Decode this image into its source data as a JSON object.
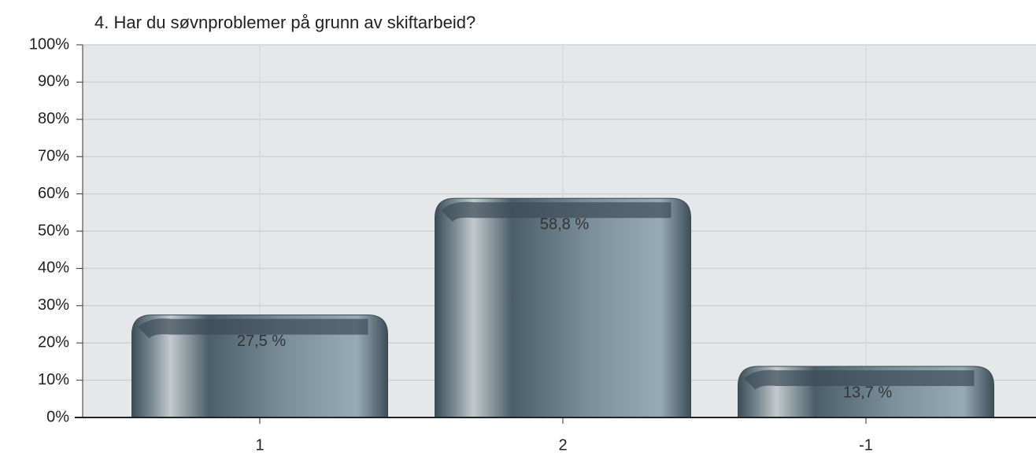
{
  "chart_data": {
    "type": "bar",
    "title": "4. Har du søvnproblemer på grunn av skiftarbeid?",
    "categories": [
      "1",
      "2",
      "-1"
    ],
    "values": [
      27.5,
      58.8,
      13.7
    ],
    "value_labels": [
      "27,5 %",
      "58,8 %",
      "13,7 %"
    ],
    "color": "#6f8591",
    "ylim": [
      0,
      100
    ],
    "yticks": [
      {
        "value": 0,
        "label": "0%"
      },
      {
        "value": 10,
        "label": "10%"
      },
      {
        "value": 20,
        "label": "20%"
      },
      {
        "value": 30,
        "label": "30%"
      },
      {
        "value": 40,
        "label": "40%"
      },
      {
        "value": 50,
        "label": "50%"
      },
      {
        "value": 60,
        "label": "60%"
      },
      {
        "value": 70,
        "label": "70%"
      },
      {
        "value": 80,
        "label": "80%"
      },
      {
        "value": 90,
        "label": "90%"
      },
      {
        "value": 100,
        "label": "100%"
      }
    ],
    "grid": true
  }
}
